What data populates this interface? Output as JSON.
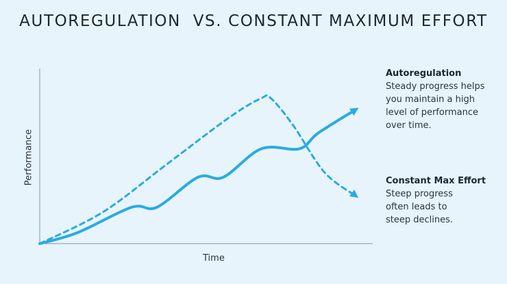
{
  "chart_data": {
    "type": "line",
    "title": "AUTOREGULATION  VS. CONSTANT MAXIMUM EFFORT",
    "xlabel": "Time",
    "ylabel": "Performance",
    "xlim": [
      0,
      100
    ],
    "ylim": [
      0,
      100
    ],
    "grid": false,
    "legend": "direct labels at right",
    "series": [
      {
        "name": "Autoregulation",
        "style": "solid",
        "color": "#29abe2",
        "x": [
          0,
          12,
          29,
          37,
          50,
          58,
          70,
          82,
          88,
          100
        ],
        "y": [
          0,
          7,
          23,
          23,
          42,
          42,
          60,
          60,
          70,
          85
        ]
      },
      {
        "name": "Constant Max Effort",
        "style": "dashed",
        "color": "#29abe2",
        "x": [
          0,
          20,
          40,
          60,
          70,
          73,
          80,
          90,
          100
        ],
        "y": [
          0,
          20,
          50,
          80,
          92,
          92,
          75,
          45,
          30
        ]
      }
    ],
    "annotations": [
      {
        "series": "Autoregulation",
        "heading": "Autoregulation",
        "lines": [
          "Steady progress helps",
          "you maintain a high",
          "level of performance",
          "over time."
        ]
      },
      {
        "series": "Constant Max Effort",
        "heading": "Constant Max Effort",
        "lines": [
          "Steep progress",
          "often leads to",
          "steep declines."
        ]
      }
    ]
  }
}
